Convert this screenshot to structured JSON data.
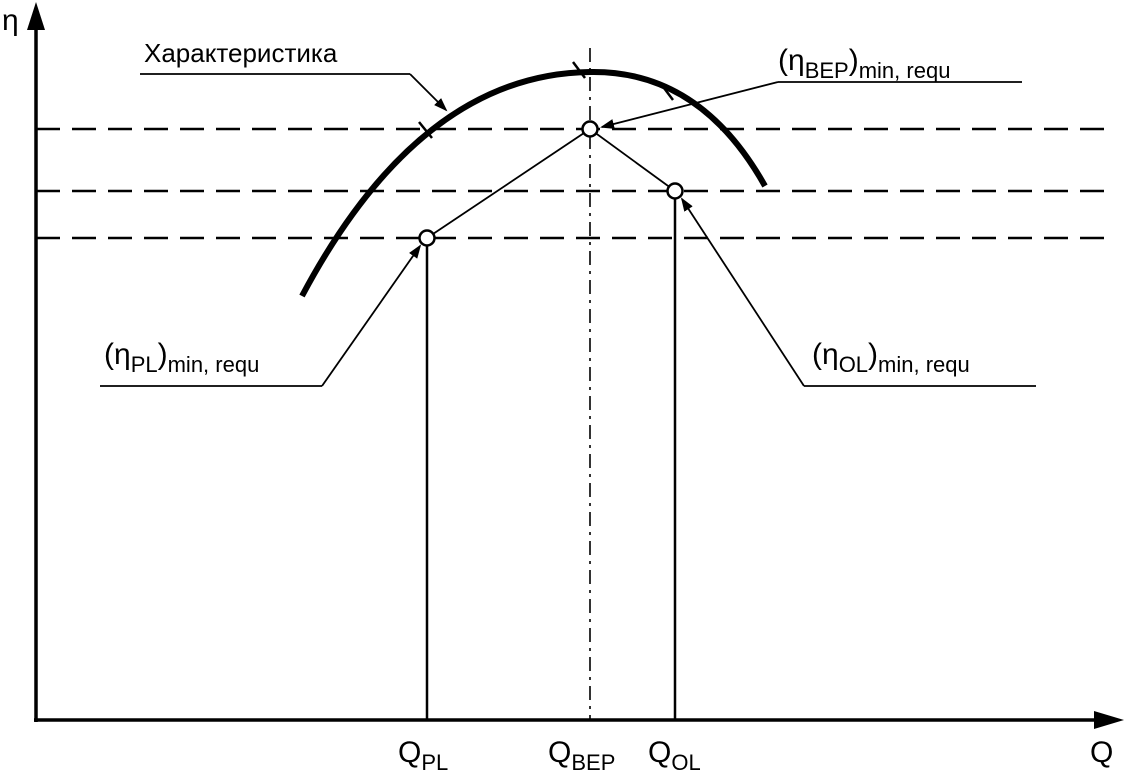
{
  "diagram": {
    "y_axis_label": "η",
    "x_axis_label": "Q",
    "curve_label": "Характеристика",
    "labels": {
      "eta_bep": {
        "open": "(η",
        "sub": "BEP",
        "close": ")",
        "tail": "min, requ"
      },
      "eta_pl": {
        "open": "(η",
        "sub": "PL",
        "close": ")",
        "tail": "min, requ"
      },
      "eta_ol": {
        "open": "(η",
        "sub": "OL",
        "close": ")",
        "tail": "min, requ"
      }
    },
    "x_ticks": {
      "q_pl": {
        "main": "Q",
        "sub": "PL"
      },
      "q_bep": {
        "main": "Q",
        "sub": "BEP"
      },
      "q_ol": {
        "main": "Q",
        "sub": "OL"
      }
    }
  }
}
